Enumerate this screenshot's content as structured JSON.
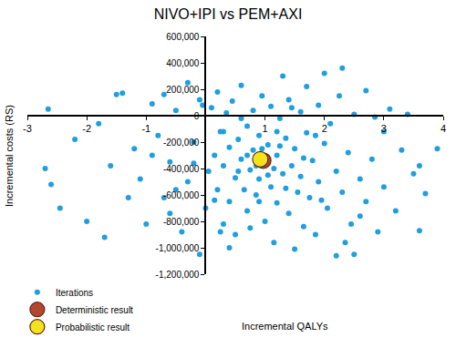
{
  "chart_data": {
    "type": "scatter",
    "title": "NIVO+IPI vs PEM+AXI",
    "x_label": "Incremental QALYs",
    "y_label": "Incremental costs (RS)",
    "xlim": [
      -3,
      4
    ],
    "xticks": [
      -3,
      -2,
      -1,
      1,
      2,
      3,
      4
    ],
    "ylim": [
      -1200000,
      600000
    ],
    "yticks": [
      {
        "value": -1200000,
        "label": "-1,200,000"
      },
      {
        "value": -1000000,
        "label": "-1,000,000"
      },
      {
        "value": -800000,
        "label": "-800,000"
      },
      {
        "value": -600000,
        "label": "-600,000"
      },
      {
        "value": -400000,
        "label": "-400,000"
      },
      {
        "value": -200000,
        "label": "-200,000"
      },
      0,
      {
        "value": 200000,
        "label": "200,000"
      },
      {
        "value": 400000,
        "label": "400,000"
      },
      {
        "value": 600000,
        "label": "600,000"
      }
    ],
    "grid": false,
    "legend": "bottom left",
    "series": [
      {
        "name": "Iterations",
        "color": "#1f9fe0",
        "marker": "circle",
        "x": [
          -2.65,
          -2.7,
          -2.6,
          -2.45,
          -2.0,
          -1.8,
          -1.5,
          -1.4,
          -1.7,
          -1.2,
          -1.1,
          -1.0,
          -0.9,
          -0.8,
          -0.7,
          -0.6,
          -0.5,
          -0.4,
          -0.3,
          -0.3,
          -0.2,
          -0.1,
          -0.1,
          0.0,
          0.05,
          0.1,
          0.15,
          0.2,
          0.2,
          0.25,
          0.3,
          0.3,
          0.35,
          0.4,
          0.4,
          0.45,
          0.5,
          0.5,
          0.55,
          0.6,
          0.6,
          0.65,
          0.7,
          0.7,
          0.75,
          0.8,
          0.8,
          0.85,
          0.9,
          0.9,
          0.95,
          1.0,
          1.0,
          1.05,
          1.1,
          1.1,
          1.15,
          1.2,
          1.2,
          1.25,
          1.3,
          1.3,
          1.35,
          1.4,
          1.4,
          1.45,
          1.5,
          1.5,
          1.55,
          1.6,
          1.6,
          1.65,
          1.7,
          1.7,
          1.75,
          1.8,
          1.85,
          1.9,
          1.9,
          2.0,
          2.0,
          2.05,
          2.1,
          2.2,
          2.2,
          2.25,
          2.3,
          2.3,
          2.4,
          2.45,
          2.5,
          2.5,
          2.6,
          2.7,
          2.7,
          2.8,
          2.9,
          3.0,
          3.0,
          3.1,
          3.2,
          3.3,
          3.5,
          3.6,
          3.6,
          3.9,
          0.3,
          0.6,
          0.9,
          1.2,
          0.4,
          -0.6,
          -1.3,
          -0.2,
          0.75,
          1.35,
          1.85,
          0.15,
          -0.9,
          2.35,
          3.4,
          -0.5,
          0.95,
          1.65,
          0.55,
          1.05,
          0.85,
          1.15,
          0.7,
          1.25,
          -1.6,
          -2.2,
          2.85,
          3.7,
          -0.05,
          1.45,
          0.25,
          2.6,
          -0.7,
          1.95
        ],
        "values": [
          50000,
          -400000,
          -520000,
          -700000,
          -800000,
          -60000,
          160000,
          170000,
          -920000,
          -250000,
          -480000,
          -820000,
          90000,
          -150000,
          -620000,
          -350000,
          40000,
          -880000,
          250000,
          -500000,
          -200000,
          -1050000,
          120000,
          -700000,
          -420000,
          60000,
          -300000,
          -560000,
          180000,
          -120000,
          -820000,
          -380000,
          20000,
          -650000,
          -240000,
          110000,
          -470000,
          -900000,
          -180000,
          -330000,
          230000,
          -560000,
          -80000,
          -720000,
          -410000,
          40000,
          -260000,
          -600000,
          -150000,
          -480000,
          150000,
          -360000,
          -800000,
          -220000,
          -540000,
          70000,
          -960000,
          -300000,
          -660000,
          -20000,
          300000,
          -440000,
          -170000,
          -740000,
          120000,
          -380000,
          -1010000,
          -250000,
          -580000,
          30000,
          -460000,
          -840000,
          -130000,
          220000,
          -620000,
          -340000,
          -900000,
          80000,
          -500000,
          320000,
          -210000,
          -700000,
          -60000,
          -1060000,
          -420000,
          150000,
          360000,
          -580000,
          -280000,
          -820000,
          -1050000,
          10000,
          -480000,
          -650000,
          190000,
          -330000,
          -880000,
          -120000,
          -540000,
          50000,
          -720000,
          -260000,
          -440000,
          -870000,
          -380000,
          -250000,
          -120000,
          -20000,
          -650000,
          -120000,
          -1000000,
          -740000,
          -620000,
          -360000,
          -850000,
          -550000,
          -150000,
          -640000,
          -300000,
          -960000,
          10000,
          -560000,
          -250000,
          -320000,
          -420000,
          -450000,
          -380000,
          -400000,
          -300000,
          -230000,
          -380000,
          -180000,
          -10000,
          -590000,
          80000,
          60000,
          -880000,
          -760000,
          160000,
          -640000
        ]
      },
      {
        "name": "Deterministic result",
        "color": "#b5472e",
        "marker": "circle",
        "x": [
          0.97
        ],
        "values": [
          -340000
        ]
      },
      {
        "name": "Probabilistic result",
        "color": "#f3e21c",
        "marker": "circle",
        "x": [
          0.92
        ],
        "values": [
          -330000
        ]
      }
    ]
  }
}
